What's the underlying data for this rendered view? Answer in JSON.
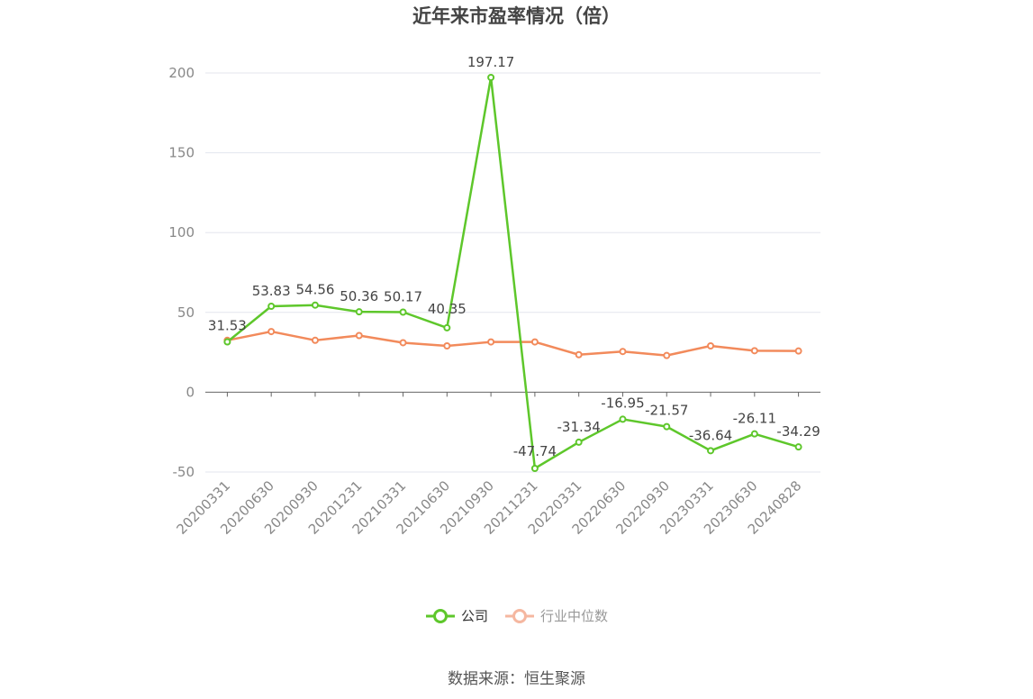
{
  "title": "近年来市盈率情况（倍）",
  "source": "数据来源：恒生聚源",
  "colors": {
    "company": "#5ec72b",
    "industry": "#f28a5b",
    "industry_legend": "#f5b7a0"
  },
  "chart_data": {
    "type": "line",
    "categories": [
      "20200331",
      "20200630",
      "20200930",
      "20201231",
      "20210331",
      "20210630",
      "20210930",
      "20211231",
      "20220331",
      "20220630",
      "20220930",
      "20230331",
      "20230630",
      "20240828"
    ],
    "series": [
      {
        "name": "公司",
        "values": [
          31.53,
          53.83,
          54.56,
          50.36,
          50.17,
          40.35,
          197.17,
          -47.74,
          -31.34,
          -16.95,
          -21.57,
          -36.64,
          -26.11,
          -34.29
        ]
      },
      {
        "name": "行业中位数",
        "values": [
          32.5,
          38.0,
          32.5,
          35.5,
          31.0,
          29.0,
          31.5,
          31.5,
          23.5,
          25.5,
          23.0,
          29.0,
          26.0,
          25.8
        ]
      }
    ],
    "yticks": [
      200,
      150,
      100,
      50,
      0,
      -50
    ],
    "ylim": [
      -50,
      200
    ],
    "grid": true,
    "legend_position": "bottom"
  }
}
